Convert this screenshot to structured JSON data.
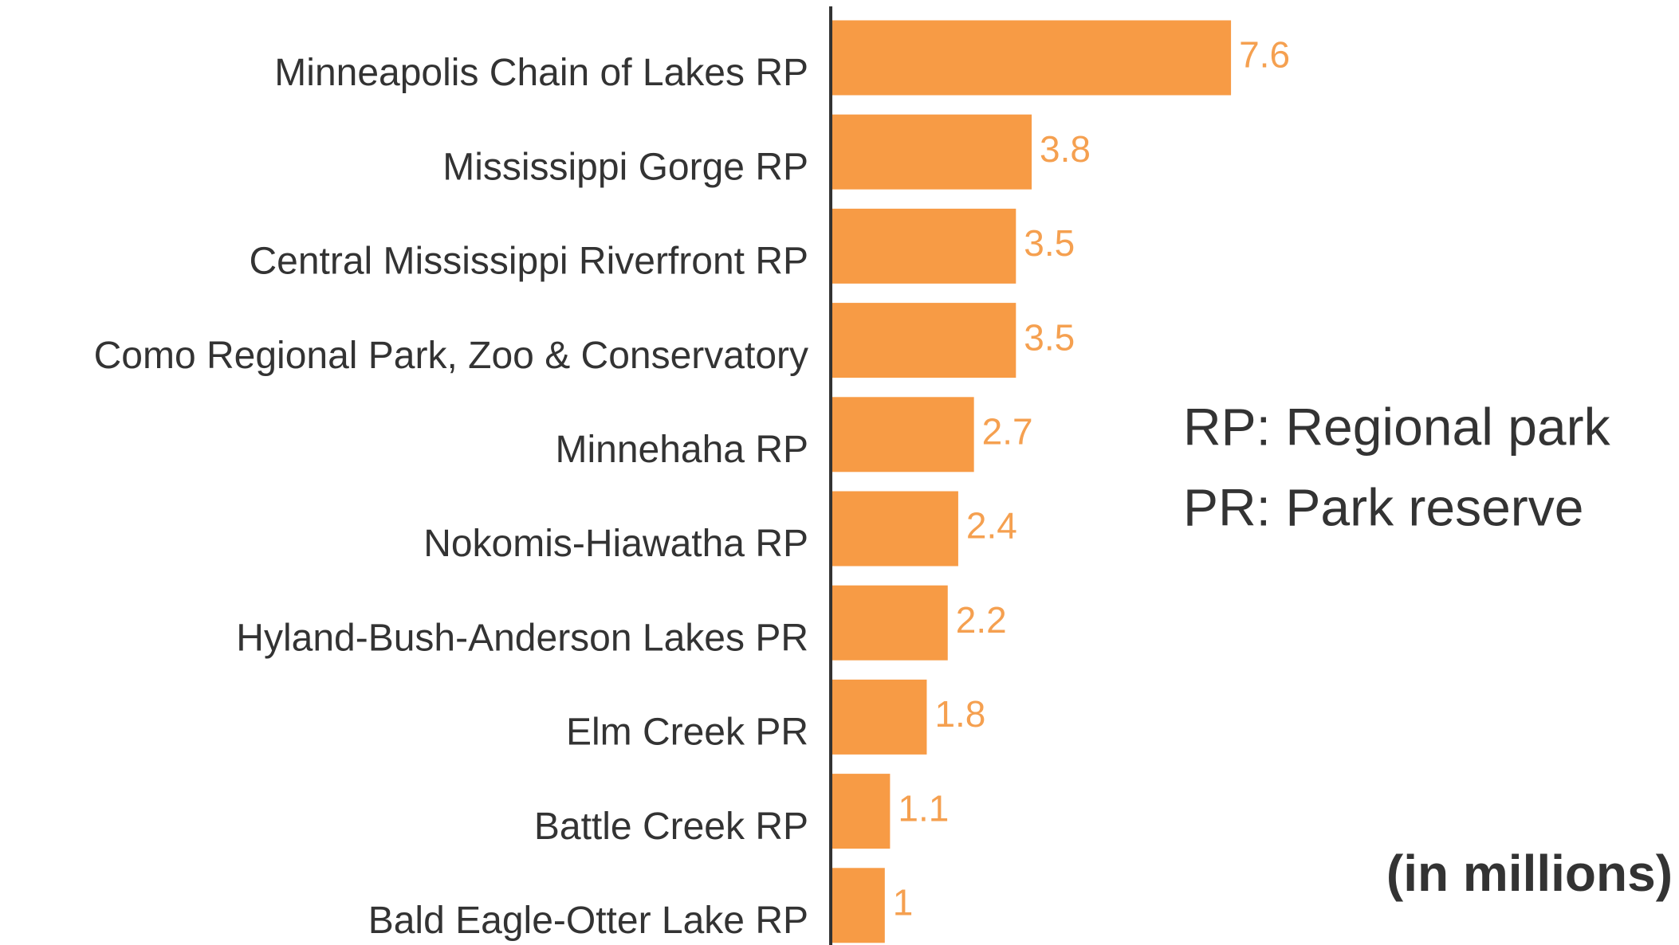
{
  "chart_data": {
    "type": "bar",
    "orientation": "horizontal",
    "categories": [
      "Minneapolis Chain of Lakes RP",
      "Mississippi Gorge RP",
      "Central Mississippi Riverfront RP",
      "Como Regional Park, Zoo & Conservatory",
      "Minnehaha RP",
      "Nokomis-Hiawatha RP",
      "Hyland-Bush-Anderson Lakes PR",
      "Elm Creek PR",
      "Battle Creek RP",
      "Bald Eagle-Otter Lake RP"
    ],
    "values": [
      7.6,
      3.8,
      3.5,
      3.5,
      2.7,
      2.4,
      2.2,
      1.8,
      1.1,
      1
    ],
    "color": "#f79b45",
    "annotations": [
      "RP: Regional park",
      "PR: Park reserve"
    ],
    "unit_note": "(in millions)"
  }
}
